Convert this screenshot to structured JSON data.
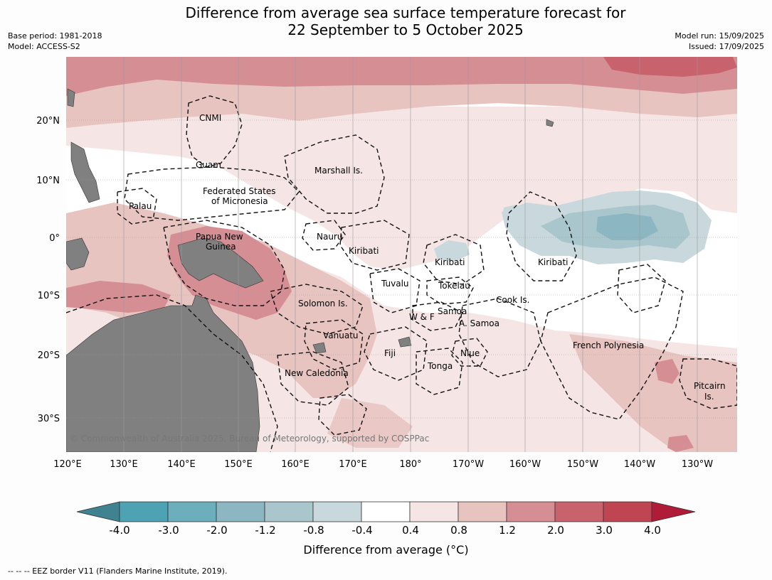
{
  "title_line1": "Difference from average sea surface temperature forecast for",
  "title_line2": "22 September to 5 October 2025",
  "base_period": "Base period: 1981-2018",
  "model": "Model: ACCESS-S2",
  "model_run": "Model run: 15/09/2025",
  "issued": "Issued: 17/09/2025",
  "copyright": "© Commonwealth of Australia 2025, Bureau of Meteorology, supported by COSPPac",
  "lat_ticks": [
    "20°N",
    "10°N",
    "0°",
    "10°S",
    "20°S",
    "30°S"
  ],
  "lon_ticks": [
    "120°E",
    "130°E",
    "140°E",
    "150°E",
    "160°E",
    "170°E",
    "180°",
    "170°W",
    "160°W",
    "150°W",
    "140°W",
    "130°W"
  ],
  "places": [
    {
      "name": "CNMI"
    },
    {
      "name": "Guam"
    },
    {
      "name": "Marshall Is."
    },
    {
      "name": "Federated States"
    },
    {
      "name": "of Micronesia"
    },
    {
      "name": "Palau"
    },
    {
      "name": "Papua New"
    },
    {
      "name": "Guinea"
    },
    {
      "name": "Nauru"
    },
    {
      "name": "Kiribati"
    },
    {
      "name": "Kiribati"
    },
    {
      "name": "Kiribati"
    },
    {
      "name": "Tuvalu"
    },
    {
      "name": "Tokelau"
    },
    {
      "name": "Cook Is."
    },
    {
      "name": "Solomon Is."
    },
    {
      "name": "Samoa"
    },
    {
      "name": "W & F"
    },
    {
      "name": "A. Samoa"
    },
    {
      "name": "Vanuatu"
    },
    {
      "name": "Fiji"
    },
    {
      "name": "Niue"
    },
    {
      "name": "French Polynesia"
    },
    {
      "name": "Tonga"
    },
    {
      "name": "New Caledonia"
    },
    {
      "name": "Pitcairn"
    },
    {
      "name": "Is."
    }
  ],
  "colorbar": {
    "title": "Difference from average (°C)",
    "labels": [
      "-4.0",
      "-3.0",
      "-2.0",
      "-1.2",
      "-0.8",
      "-0.4",
      "0.4",
      "0.8",
      "1.2",
      "2.0",
      "3.0",
      "4.0"
    ],
    "colors": [
      "#3f8390",
      "#4da2b4",
      "#6daebc",
      "#8cb6c2",
      "#a8c6cc",
      "#c8d8dc",
      "#ffffff",
      "#f5e6e5",
      "#e8c4c1",
      "#d68e95",
      "#c8636d",
      "#c04552",
      "#b01c38"
    ]
  },
  "footer": "--  --  -- EEZ border V11 (Flanders Marine Institute, 2019)."
}
